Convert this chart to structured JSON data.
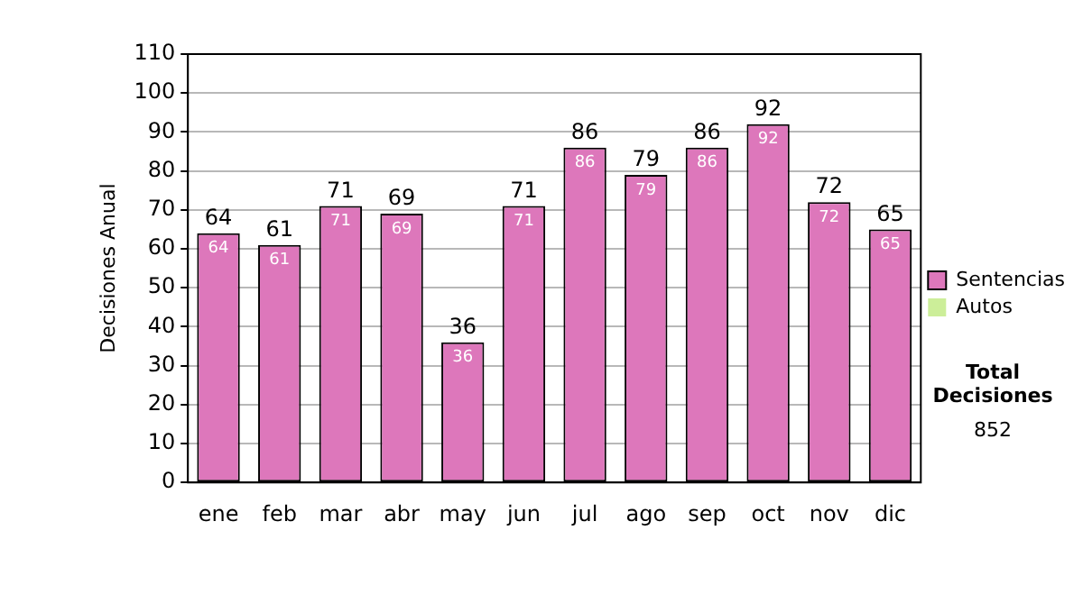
{
  "chart_data": {
    "type": "bar",
    "stacked": true,
    "ylabel": "Decisiones Anual",
    "categories": [
      "ene",
      "feb",
      "mar",
      "abr",
      "may",
      "jun",
      "jul",
      "ago",
      "sep",
      "oct",
      "nov",
      "dic"
    ],
    "series": [
      {
        "name": "Sentencias",
        "color": "#dd77bb",
        "values": [
          64,
          61,
          71,
          69,
          36,
          71,
          86,
          79,
          86,
          92,
          72,
          65
        ],
        "value_labels": [
          "64",
          "61",
          "71",
          "69",
          "36",
          "71",
          "86",
          "79",
          "86",
          "92",
          "72",
          "65"
        ]
      },
      {
        "name": "Autos",
        "color": "#ccee99",
        "values": [
          0,
          0,
          0,
          0,
          0,
          0,
          0,
          0,
          0,
          0,
          0,
          0
        ]
      }
    ],
    "totals": [
      "64",
      "61",
      "71",
      "69",
      "36",
      "71",
      "86",
      "79",
      "86",
      "92",
      "72",
      "65"
    ],
    "ylim": [
      0,
      110
    ],
    "yticks": [
      0,
      10,
      20,
      30,
      40,
      50,
      60,
      70,
      80,
      90,
      100,
      110
    ],
    "grid": "y",
    "legend": "right",
    "annotations": [
      "Total Decisiones",
      "852"
    ]
  }
}
